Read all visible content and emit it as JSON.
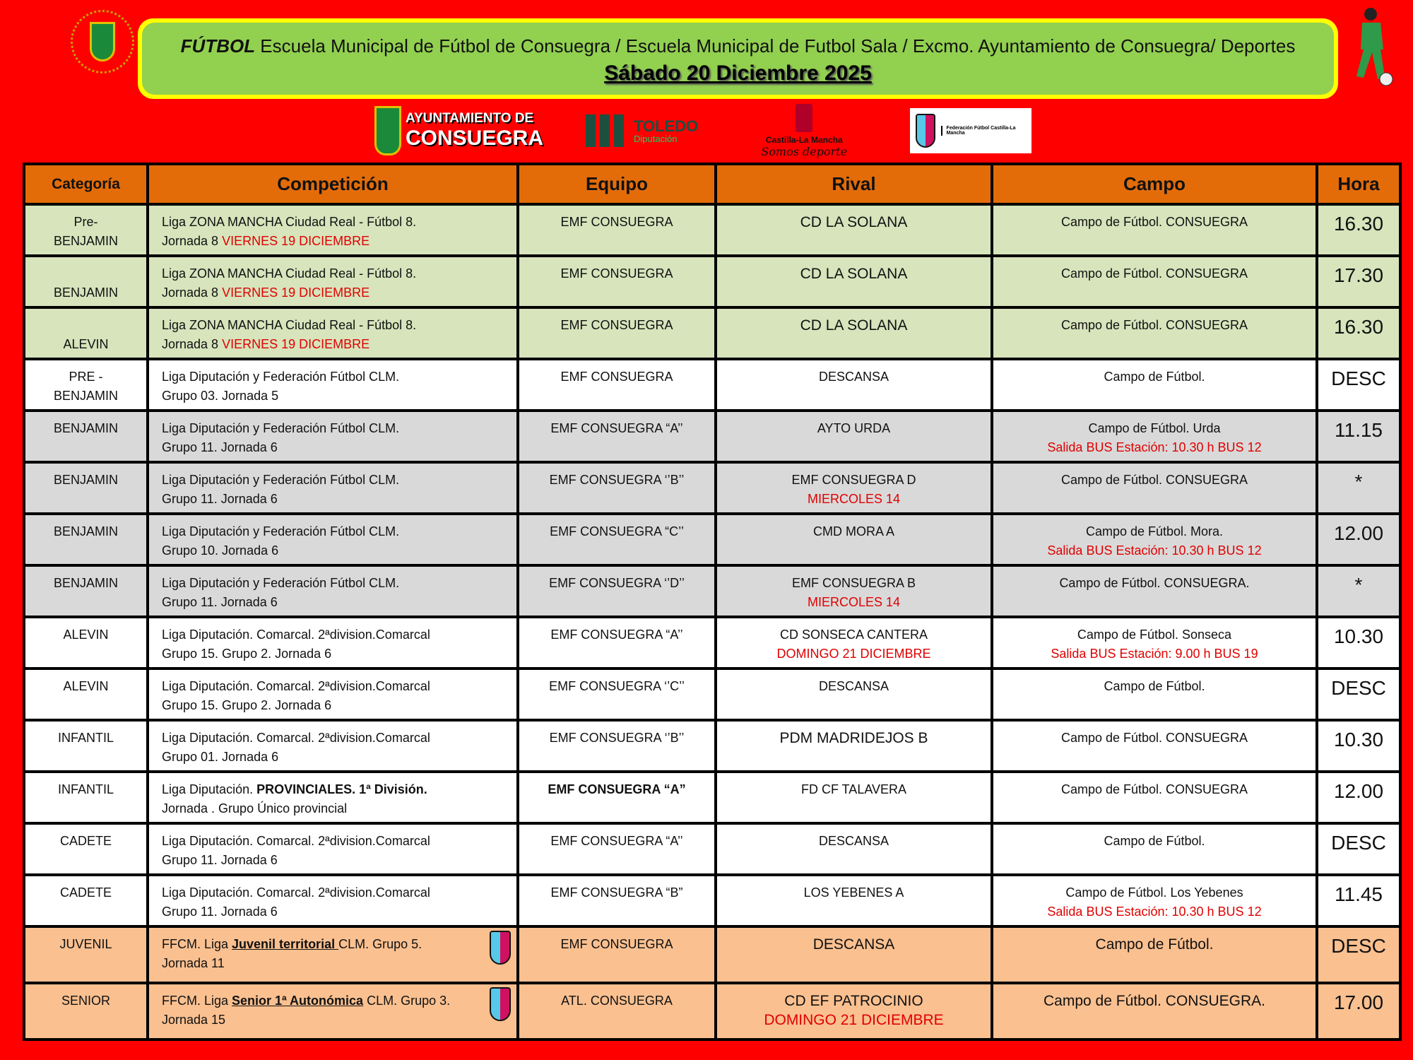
{
  "banner": {
    "title_bold": "FÚTBOL",
    "title_rest": " Escuela Municipal de Fútbol de Consuegra / Escuela Municipal de Futbol Sala / Excmo. Ayuntamiento de Consuegra/ Deportes",
    "date": "Sábado 20 Diciembre 2025"
  },
  "logos": {
    "ayto_line1": "AYUNTAMIENTO DE",
    "ayto_line2": "CONSUEGRA",
    "toledo": "TOLEDO",
    "toledo_sub": "Diputación",
    "clm": "Castilla-La Mancha",
    "clm_sub": "Somos deporte",
    "ffcm": "Federación Fútbol Castilla-La Mancha"
  },
  "colors": {
    "background": "#ff0000",
    "header": "#e36c09",
    "green": "#d7e4bc",
    "gray": "#d9d9d9",
    "peach": "#fac090",
    "banner": "#92d050",
    "banner_border": "#ffff00",
    "highlight": "#e00000"
  },
  "table": {
    "headers": [
      "Categoría",
      "Competición",
      "Equipo",
      "Rival",
      "Campo",
      "Hora"
    ],
    "rows": [
      {
        "style": "green",
        "cat": [
          "Pre-",
          "BENJAMIN"
        ],
        "comp": [
          [
            {
              "t": "Liga  ZONA MANCHA Ciudad Real - Fútbol  8."
            }
          ],
          [
            {
              "t": "Jornada 8  "
            },
            {
              "t": "VIERNES 19 DICIEMBRE",
              "red": true
            }
          ]
        ],
        "equipo": [
          "EMF CONSUEGRA"
        ],
        "rival": [
          "CD LA SOLANA"
        ],
        "rival_big": true,
        "campo": [
          "Campo de Fútbol. CONSUEGRA"
        ],
        "hora": "16.30"
      },
      {
        "style": "green",
        "cat": [
          "",
          "BENJAMIN"
        ],
        "comp": [
          [
            {
              "t": "Liga  ZONA MANCHA Ciudad Real - Fútbol  8."
            }
          ],
          [
            {
              "t": "Jornada 8  "
            },
            {
              "t": "VIERNES 19 DICIEMBRE",
              "red": true
            }
          ]
        ],
        "equipo": [
          "EMF CONSUEGRA"
        ],
        "rival": [
          "CD LA SOLANA"
        ],
        "rival_big": true,
        "campo": [
          "Campo de Fútbol. CONSUEGRA"
        ],
        "hora": "17.30"
      },
      {
        "style": "green",
        "cat": [
          "",
          "ALEVIN"
        ],
        "comp": [
          [
            {
              "t": "Liga  ZONA MANCHA Ciudad Real - Fútbol  8."
            }
          ],
          [
            {
              "t": "Jornada 8  "
            },
            {
              "t": "VIERNES 19 DICIEMBRE",
              "red": true
            }
          ]
        ],
        "equipo": [
          "EMF CONSUEGRA"
        ],
        "rival": [
          "CD LA SOLANA"
        ],
        "rival_big": true,
        "campo": [
          "Campo de Fútbol. CONSUEGRA"
        ],
        "hora": "16.30"
      },
      {
        "style": "white",
        "cat": [
          "PRE -",
          "BENJAMIN"
        ],
        "comp": [
          [
            {
              "t": "Liga Diputación y Federación Fútbol CLM."
            }
          ],
          [
            {
              "t": "Grupo 03. Jornada 5"
            }
          ]
        ],
        "equipo": [
          "EMF CONSUEGRA"
        ],
        "rival": [
          "DESCANSA"
        ],
        "campo": [
          "Campo de Fútbol."
        ],
        "hora": "DESC"
      },
      {
        "style": "gray",
        "cat": [
          "BENJAMIN"
        ],
        "comp": [
          [
            {
              "t": "Liga Diputación y Federación Fútbol CLM."
            }
          ],
          [
            {
              "t": "Grupo 11. Jornada 6"
            }
          ]
        ],
        "equipo": [
          "EMF CONSUEGRA “A’’"
        ],
        "rival": [
          "AYTO URDA"
        ],
        "campo": [
          "Campo de Fútbol. Urda",
          {
            "t": "Salida BUS Estación:  10.30 h BUS 12",
            "red": true
          }
        ],
        "hora": "11.15"
      },
      {
        "style": "gray",
        "cat": [
          "BENJAMIN"
        ],
        "comp": [
          [
            {
              "t": "Liga Diputación y Federación Fútbol CLM."
            }
          ],
          [
            {
              "t": "Grupo 11. Jornada 6"
            }
          ]
        ],
        "equipo": [
          "EMF CONSUEGRA ‘’B’’"
        ],
        "rival": [
          "EMF CONSUEGRA D",
          {
            "t": "MIERCOLES  14",
            "red": true
          }
        ],
        "campo": [
          "Campo de Fútbol. CONSUEGRA"
        ],
        "hora": "*"
      },
      {
        "style": "gray",
        "cat": [
          "BENJAMIN"
        ],
        "comp": [
          [
            {
              "t": "Liga Diputación y Federación Fútbol CLM."
            }
          ],
          [
            {
              "t": "Grupo 10. Jornada 6"
            }
          ]
        ],
        "equipo": [
          "EMF CONSUEGRA “C’’"
        ],
        "rival": [
          "CMD MORA A"
        ],
        "campo": [
          "Campo de Fútbol. Mora.",
          {
            "t": "Salida BUS Estación:  10.30 h BUS 12",
            "red": true
          }
        ],
        "hora": "12.00"
      },
      {
        "style": "gray",
        "cat": [
          "BENJAMIN"
        ],
        "comp": [
          [
            {
              "t": "Liga Diputación y Federación Fútbol CLM."
            }
          ],
          [
            {
              "t": "Grupo 11. Jornada 6"
            }
          ]
        ],
        "equipo": [
          "EMF CONSUEGRA ‘’D’’"
        ],
        "rival": [
          "EMF CONSUEGRA B",
          {
            "t": "MIERCOLES  14",
            "red": true
          }
        ],
        "campo": [
          "Campo de Fútbol. CONSUEGRA."
        ],
        "hora": "*"
      },
      {
        "style": "white",
        "cat": [
          "ALEVIN"
        ],
        "comp": [
          [
            {
              "t": "Liga Diputación. Comarcal.  2ªdivision.Comarcal"
            }
          ],
          [
            {
              "t": "Grupo 15. Grupo 2. Jornada 6"
            }
          ]
        ],
        "equipo": [
          "EMF CONSUEGRA “A’’"
        ],
        "rival": [
          "CD SONSECA CANTERA",
          {
            "t": "DOMINGO 21 DICIEMBRE",
            "red": true
          }
        ],
        "campo": [
          "Campo de Fútbol. Sonseca",
          {
            "t": "Salida BUS Estación:  9.00 h BUS 19",
            "red": true
          }
        ],
        "hora": "10.30"
      },
      {
        "style": "white",
        "cat": [
          "ALEVIN"
        ],
        "comp": [
          [
            {
              "t": "Liga Diputación. Comarcal.  2ªdivision.Comarcal"
            }
          ],
          [
            {
              "t": "Grupo 15. Grupo 2. Jornada 6"
            }
          ]
        ],
        "equipo": [
          "EMF CONSUEGRA ‘’C’’"
        ],
        "rival": [
          "DESCANSA"
        ],
        "campo": [
          "Campo de Fútbol."
        ],
        "hora": "DESC"
      },
      {
        "style": "white",
        "cat": [
          "INFANTIL"
        ],
        "comp": [
          [
            {
              "t": "Liga Diputación. Comarcal.  2ªdivision.Comarcal"
            }
          ],
          [
            {
              "t": "Grupo 01. Jornada 6"
            }
          ]
        ],
        "equipo": [
          "EMF CONSUEGRA ‘’B’’"
        ],
        "rival": [
          "PDM MADRIDEJOS B"
        ],
        "rival_big": true,
        "campo": [
          "Campo de Fútbol. CONSUEGRA"
        ],
        "hora": "10.30"
      },
      {
        "style": "white",
        "cat": [
          "INFANTIL"
        ],
        "comp": [
          [
            {
              "t": "Liga Diputación. "
            },
            {
              "t": "PROVINCIALES.  1ª División.",
              "b": true
            }
          ],
          [
            {
              "t": "Jornada . Grupo Único provincial"
            }
          ]
        ],
        "equipo": [
          {
            "t": "EMF CONSUEGRA “A”",
            "b": true
          }
        ],
        "rival": [
          "FD CF TALAVERA"
        ],
        "campo": [
          "Campo de Fútbol. CONSUEGRA"
        ],
        "hora": "12.00"
      },
      {
        "style": "white",
        "cat": [
          "CADETE"
        ],
        "comp": [
          [
            {
              "t": "Liga Diputación. Comarcal.  2ªdivision.Comarcal"
            }
          ],
          [
            {
              "t": "Grupo 11. Jornada 6"
            }
          ]
        ],
        "equipo": [
          "EMF CONSUEGRA “A’’"
        ],
        "rival": [
          "DESCANSA"
        ],
        "campo": [
          "Campo de Fútbol."
        ],
        "hora": "DESC"
      },
      {
        "style": "white",
        "cat": [
          "CADETE"
        ],
        "comp": [
          [
            {
              "t": "Liga Diputación. Comarcal. 2ªdivision.Comarcal"
            }
          ],
          [
            {
              "t": "Grupo 11. Jornada 6"
            }
          ]
        ],
        "equipo": [
          "EMF CONSUEGRA “B”"
        ],
        "rival": [
          "LOS YEBENES A"
        ],
        "campo": [
          "Campo de Fútbol. Los Yebenes",
          {
            "t": "Salida BUS Estación:  10.30 h BUS 12",
            "red": true
          }
        ],
        "hora": "11.45"
      },
      {
        "style": "peach",
        "tall": true,
        "badge": true,
        "cat": [
          "JUVENIL"
        ],
        "comp": [
          [
            {
              "t": "FFCM. Liga "
            },
            {
              "t": "Juvenil territorial ",
              "b": true,
              "u": true
            },
            {
              "t": "CLM.  Grupo 5."
            }
          ],
          [
            {
              "t": "Jornada 11"
            }
          ]
        ],
        "equipo": [
          "EMF CONSUEGRA"
        ],
        "rival": [
          "DESCANSA"
        ],
        "rival_big": true,
        "campo": [
          "Campo de Fútbol."
        ],
        "campo_big": true,
        "hora": "DESC"
      },
      {
        "style": "peach",
        "tall": true,
        "badge": true,
        "cat": [
          "SENIOR"
        ],
        "comp": [
          [
            {
              "t": "FFCM. Liga "
            },
            {
              "t": "Senior 1ª Autonómica",
              "b": true,
              "u": true
            },
            {
              "t": " CLM.  Grupo 3."
            }
          ],
          [
            {
              "t": "Jornada 15"
            }
          ]
        ],
        "equipo": [
          "ATL. CONSUEGRA"
        ],
        "rival": [
          "CD EF PATROCINIO",
          {
            "t": "DOMINGO 21 DICIEMBRE",
            "red": true
          }
        ],
        "rival_big": true,
        "campo": [
          "Campo de Fútbol. CONSUEGRA."
        ],
        "campo_big": true,
        "hora": "17.00"
      }
    ]
  }
}
